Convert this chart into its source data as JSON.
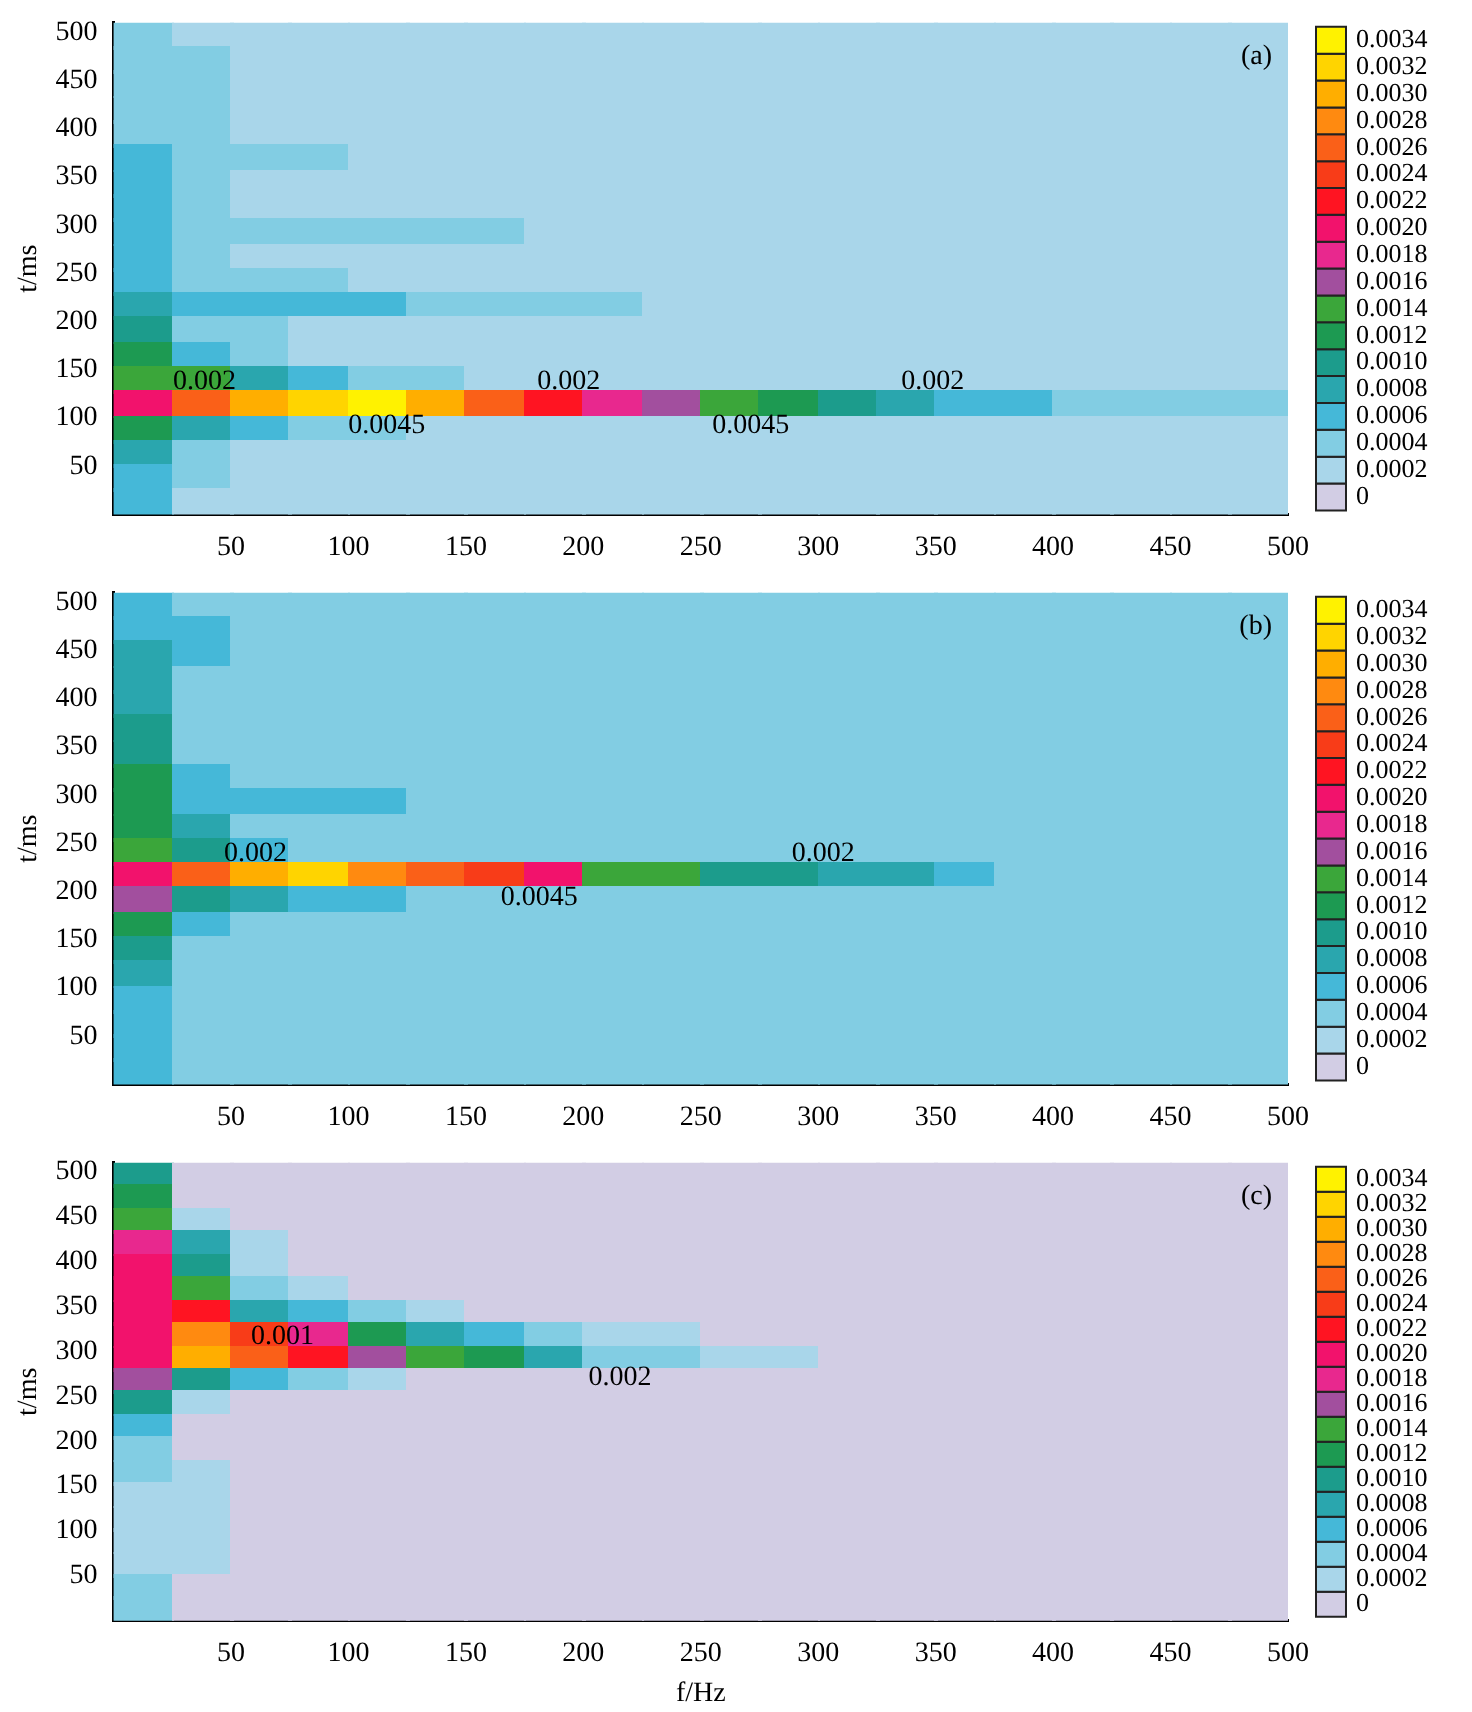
{
  "chart_data": [
    {
      "type": "heatmap",
      "ylabel": "t/ms",
      "annotations": [
        "(a)",
        "0.002",
        "0.0045",
        "0.002",
        "0.0045",
        "0.002"
      ],
      "x": [
        12.5,
        37.5,
        62.5,
        87.5,
        112.5,
        137.5,
        162.5,
        187.5,
        212.5,
        237.5,
        262.5,
        287.5,
        312.5,
        337.5,
        362.5,
        387.5,
        412.5,
        437.5,
        462.5,
        487.5
      ],
      "y": [
        497.25,
        471.75,
        446.25,
        420.75,
        395.25,
        369.75,
        344.25,
        318.75,
        293.25,
        267.75,
        242.25,
        216.75,
        191.25,
        165.75,
        140.25,
        114.75,
        89.25,
        63.75,
        38.25,
        12.75
      ],
      "xlim": [
        0,
        500
      ],
      "ylim": [
        0,
        510
      ],
      "xticks": [
        50,
        100,
        150,
        200,
        250,
        300,
        350,
        400,
        450,
        500
      ],
      "yticks": [
        50,
        100,
        150,
        200,
        250,
        300,
        350,
        400,
        450,
        500
      ],
      "clim": [
        -0.0001,
        0.0035
      ],
      "cticks": [
        0,
        0.0002,
        0.0004,
        0.0006,
        0.0008,
        {
          "value": 0.001,
          "label": "0.0010"
        },
        0.0012,
        0.0014,
        0.0016,
        0.0018,
        {
          "value": 0.002,
          "label": "0.0020"
        },
        0.0022,
        0.0024,
        0.0026,
        0.0028,
        {
          "value": 0.003,
          "label": "0.0030"
        },
        0.0032,
        0.0034
      ],
      "cells": [
        [
          0.0004,
          0.0002,
          0.0002,
          0.0002,
          0.0002,
          0.0002,
          0.0002,
          0.0002,
          0.0002,
          0.0002,
          0.0002,
          0.0002,
          0.0002,
          0.0002,
          0.0002,
          0.0002,
          0.0002,
          0.0002,
          0.0002,
          0.0002
        ],
        [
          0.0004,
          0.0004,
          0.0002,
          0.0002,
          0.0002,
          0.0002,
          0.0002,
          0.0002,
          0.0002,
          0.0002,
          0.0002,
          0.0002,
          0.0002,
          0.0002,
          0.0002,
          0.0002,
          0.0002,
          0.0002,
          0.0002,
          0.0002
        ],
        [
          0.0004,
          0.0004,
          0.0002,
          0.0002,
          0.0002,
          0.0002,
          0.0002,
          0.0002,
          0.0002,
          0.0002,
          0.0002,
          0.0002,
          0.0002,
          0.0002,
          0.0002,
          0.0002,
          0.0002,
          0.0002,
          0.0002,
          0.0002
        ],
        [
          0.0004,
          0.0004,
          0.0002,
          0.0002,
          0.0002,
          0.0002,
          0.0002,
          0.0002,
          0.0002,
          0.0002,
          0.0002,
          0.0002,
          0.0002,
          0.0002,
          0.0002,
          0.0002,
          0.0002,
          0.0002,
          0.0002,
          0.0002
        ],
        [
          0.0004,
          0.0004,
          0.0002,
          0.0002,
          0.0002,
          0.0002,
          0.0002,
          0.0002,
          0.0002,
          0.0002,
          0.0002,
          0.0002,
          0.0002,
          0.0002,
          0.0002,
          0.0002,
          0.0002,
          0.0002,
          0.0002,
          0.0002
        ],
        [
          0.0006,
          0.0004,
          0.0004,
          0.0004,
          0.0002,
          0.0002,
          0.0002,
          0.0002,
          0.0002,
          0.0002,
          0.0002,
          0.0002,
          0.0002,
          0.0002,
          0.0002,
          0.0002,
          0.0002,
          0.0002,
          0.0002,
          0.0002
        ],
        [
          0.0006,
          0.0004,
          0.0002,
          0.0002,
          0.0002,
          0.0002,
          0.0002,
          0.0002,
          0.0002,
          0.0002,
          0.0002,
          0.0002,
          0.0002,
          0.0002,
          0.0002,
          0.0002,
          0.0002,
          0.0002,
          0.0002,
          0.0002
        ],
        [
          0.0006,
          0.0004,
          0.0002,
          0.0002,
          0.0002,
          0.0002,
          0.0002,
          0.0002,
          0.0002,
          0.0002,
          0.0002,
          0.0002,
          0.0002,
          0.0002,
          0.0002,
          0.0002,
          0.0002,
          0.0002,
          0.0002,
          0.0002
        ],
        [
          0.0006,
          0.0004,
          0.0004,
          0.0004,
          0.0004,
          0.0004,
          0.0004,
          0.0002,
          0.0002,
          0.0002,
          0.0002,
          0.0002,
          0.0002,
          0.0002,
          0.0002,
          0.0002,
          0.0002,
          0.0002,
          0.0002,
          0.0002
        ],
        [
          0.0006,
          0.0004,
          0.0002,
          0.0002,
          0.0002,
          0.0002,
          0.0002,
          0.0002,
          0.0002,
          0.0002,
          0.0002,
          0.0002,
          0.0002,
          0.0002,
          0.0002,
          0.0002,
          0.0002,
          0.0002,
          0.0002,
          0.0002
        ],
        [
          0.0006,
          0.0004,
          0.0004,
          0.0004,
          0.0002,
          0.0002,
          0.0002,
          0.0002,
          0.0002,
          0.0002,
          0.0002,
          0.0002,
          0.0002,
          0.0002,
          0.0002,
          0.0002,
          0.0002,
          0.0002,
          0.0002,
          0.0002
        ],
        [
          0.0008,
          0.0006,
          0.0006,
          0.0006,
          0.0006,
          0.0004,
          0.0004,
          0.0004,
          0.0004,
          0.0002,
          0.0002,
          0.0002,
          0.0002,
          0.0002,
          0.0002,
          0.0002,
          0.0002,
          0.0002,
          0.0002,
          0.0002
        ],
        [
          0.001,
          0.0004,
          0.0004,
          0.0002,
          0.0002,
          0.0002,
          0.0002,
          0.0002,
          0.0002,
          0.0002,
          0.0002,
          0.0002,
          0.0002,
          0.0002,
          0.0002,
          0.0002,
          0.0002,
          0.0002,
          0.0002,
          0.0002
        ],
        [
          0.0012,
          0.0006,
          0.0004,
          0.0002,
          0.0002,
          0.0002,
          0.0002,
          0.0002,
          0.0002,
          0.0002,
          0.0002,
          0.0002,
          0.0002,
          0.0002,
          0.0002,
          0.0002,
          0.0002,
          0.0002,
          0.0002,
          0.0002
        ],
        [
          0.0014,
          0.0014,
          0.0008,
          0.0006,
          0.0004,
          0.0004,
          0.0002,
          0.0002,
          0.0002,
          0.0002,
          0.0002,
          0.0002,
          0.0002,
          0.0002,
          0.0002,
          0.0002,
          0.0002,
          0.0002,
          0.0002,
          0.0002
        ],
        [
          0.002,
          0.0026,
          0.003,
          0.0032,
          0.0034,
          0.003,
          0.0026,
          0.0022,
          0.0018,
          0.0016,
          0.0014,
          0.0012,
          0.001,
          0.0008,
          0.0006,
          0.0006,
          0.0004,
          0.0004,
          0.0004,
          0.0004
        ],
        [
          0.0012,
          0.0008,
          0.0006,
          0.0004,
          0.0004,
          0.0002,
          0.0002,
          0.0002,
          0.0002,
          0.0002,
          0.0002,
          0.0002,
          0.0002,
          0.0002,
          0.0002,
          0.0002,
          0.0002,
          0.0002,
          0.0002,
          0.0002
        ],
        [
          0.0008,
          0.0004,
          0.0002,
          0.0002,
          0.0002,
          0.0002,
          0.0002,
          0.0002,
          0.0002,
          0.0002,
          0.0002,
          0.0002,
          0.0002,
          0.0002,
          0.0002,
          0.0002,
          0.0002,
          0.0002,
          0.0002,
          0.0002
        ],
        [
          0.0006,
          0.0004,
          0.0002,
          0.0002,
          0.0002,
          0.0002,
          0.0002,
          0.0002,
          0.0002,
          0.0002,
          0.0002,
          0.0002,
          0.0002,
          0.0002,
          0.0002,
          0.0002,
          0.0002,
          0.0002,
          0.0002,
          0.0002
        ],
        [
          0.0006,
          0.0002,
          0.0002,
          0.0002,
          0.0002,
          0.0002,
          0.0002,
          0.0002,
          0.0002,
          0.0002,
          0.0002,
          0.0002,
          0.0002,
          0.0002,
          0.0002,
          0.0002,
          0.0002,
          0.0002,
          0.0002,
          0.0002
        ]
      ]
    },
    {
      "type": "heatmap",
      "ylabel": "t/ms",
      "annotations": [
        "(b)",
        "0.002",
        "0.0045",
        "0.002"
      ],
      "x": [
        12.5,
        37.5,
        62.5,
        87.5,
        112.5,
        137.5,
        162.5,
        187.5,
        212.5,
        237.5,
        262.5,
        287.5,
        312.5,
        337.5,
        362.5,
        387.5,
        412.5,
        437.5,
        462.5,
        487.5
      ],
      "y": [
        497.25,
        471.75,
        446.25,
        420.75,
        395.25,
        369.75,
        344.25,
        318.75,
        293.25,
        267.75,
        242.25,
        216.75,
        191.25,
        165.75,
        140.25,
        114.75,
        89.25,
        63.75,
        38.25,
        12.75
      ],
      "xlim": [
        0,
        500
      ],
      "ylim": [
        0,
        510
      ],
      "xticks": [
        50,
        100,
        150,
        200,
        250,
        300,
        350,
        400,
        450,
        500
      ],
      "yticks": [
        50,
        100,
        150,
        200,
        250,
        300,
        350,
        400,
        450,
        500
      ],
      "clim": [
        -0.0001,
        0.0035
      ],
      "cticks": [
        0,
        0.0002,
        0.0004,
        0.0006,
        0.0008,
        {
          "value": 0.001,
          "label": "0.0010"
        },
        0.0012,
        0.0014,
        0.0016,
        0.0018,
        {
          "value": 0.002,
          "label": "0.0020"
        },
        0.0022,
        0.0024,
        0.0026,
        0.0028,
        {
          "value": 0.003,
          "label": "0.0030"
        },
        0.0032,
        0.0034
      ],
      "cells": [
        [
          0.0006,
          0.0004,
          0.0004,
          0.0004,
          0.0004,
          0.0004,
          0.0004,
          0.0004,
          0.0004,
          0.0004,
          0.0004,
          0.0004,
          0.0004,
          0.0004,
          0.0004,
          0.0004,
          0.0004,
          0.0004,
          0.0004,
          0.0004
        ],
        [
          0.0006,
          0.0006,
          0.0004,
          0.0004,
          0.0004,
          0.0004,
          0.0004,
          0.0004,
          0.0004,
          0.0004,
          0.0004,
          0.0004,
          0.0004,
          0.0004,
          0.0004,
          0.0004,
          0.0004,
          0.0004,
          0.0004,
          0.0004
        ],
        [
          0.0008,
          0.0006,
          0.0004,
          0.0004,
          0.0004,
          0.0004,
          0.0004,
          0.0004,
          0.0004,
          0.0004,
          0.0004,
          0.0004,
          0.0004,
          0.0004,
          0.0004,
          0.0004,
          0.0004,
          0.0004,
          0.0004,
          0.0004
        ],
        [
          0.0008,
          0.0004,
          0.0004,
          0.0004,
          0.0004,
          0.0004,
          0.0004,
          0.0004,
          0.0004,
          0.0004,
          0.0004,
          0.0004,
          0.0004,
          0.0004,
          0.0004,
          0.0004,
          0.0004,
          0.0004,
          0.0004,
          0.0004
        ],
        [
          0.0008,
          0.0004,
          0.0004,
          0.0004,
          0.0004,
          0.0004,
          0.0004,
          0.0004,
          0.0004,
          0.0004,
          0.0004,
          0.0004,
          0.0004,
          0.0004,
          0.0004,
          0.0004,
          0.0004,
          0.0004,
          0.0004,
          0.0004
        ],
        [
          0.001,
          0.0004,
          0.0004,
          0.0004,
          0.0004,
          0.0004,
          0.0004,
          0.0004,
          0.0004,
          0.0004,
          0.0004,
          0.0004,
          0.0004,
          0.0004,
          0.0004,
          0.0004,
          0.0004,
          0.0004,
          0.0004,
          0.0004
        ],
        [
          0.001,
          0.0004,
          0.0004,
          0.0004,
          0.0004,
          0.0004,
          0.0004,
          0.0004,
          0.0004,
          0.0004,
          0.0004,
          0.0004,
          0.0004,
          0.0004,
          0.0004,
          0.0004,
          0.0004,
          0.0004,
          0.0004,
          0.0004
        ],
        [
          0.0012,
          0.0006,
          0.0004,
          0.0004,
          0.0004,
          0.0004,
          0.0004,
          0.0004,
          0.0004,
          0.0004,
          0.0004,
          0.0004,
          0.0004,
          0.0004,
          0.0004,
          0.0004,
          0.0004,
          0.0004,
          0.0004,
          0.0004
        ],
        [
          0.0012,
          0.0006,
          0.0006,
          0.0006,
          0.0006,
          0.0004,
          0.0004,
          0.0004,
          0.0004,
          0.0004,
          0.0004,
          0.0004,
          0.0004,
          0.0004,
          0.0004,
          0.0004,
          0.0004,
          0.0004,
          0.0004,
          0.0004
        ],
        [
          0.0012,
          0.0008,
          0.0004,
          0.0004,
          0.0004,
          0.0004,
          0.0004,
          0.0004,
          0.0004,
          0.0004,
          0.0004,
          0.0004,
          0.0004,
          0.0004,
          0.0004,
          0.0004,
          0.0004,
          0.0004,
          0.0004,
          0.0004
        ],
        [
          0.0014,
          0.001,
          0.0006,
          0.0004,
          0.0004,
          0.0004,
          0.0004,
          0.0004,
          0.0004,
          0.0004,
          0.0004,
          0.0004,
          0.0004,
          0.0004,
          0.0004,
          0.0004,
          0.0004,
          0.0004,
          0.0004,
          0.0004
        ],
        [
          0.002,
          0.0026,
          0.003,
          0.0032,
          0.0028,
          0.0026,
          0.0024,
          0.002,
          0.0014,
          0.0014,
          0.001,
          0.001,
          0.0008,
          0.0008,
          0.0006,
          0.0004,
          0.0004,
          0.0004,
          0.0004,
          0.0004
        ],
        [
          0.0016,
          0.001,
          0.0008,
          0.0006,
          0.0006,
          0.0004,
          0.0004,
          0.0004,
          0.0004,
          0.0004,
          0.0004,
          0.0004,
          0.0004,
          0.0004,
          0.0004,
          0.0004,
          0.0004,
          0.0004,
          0.0004,
          0.0004
        ],
        [
          0.0012,
          0.0006,
          0.0004,
          0.0004,
          0.0004,
          0.0004,
          0.0004,
          0.0004,
          0.0004,
          0.0004,
          0.0004,
          0.0004,
          0.0004,
          0.0004,
          0.0004,
          0.0004,
          0.0004,
          0.0004,
          0.0004,
          0.0004
        ],
        [
          0.001,
          0.0004,
          0.0004,
          0.0004,
          0.0004,
          0.0004,
          0.0004,
          0.0004,
          0.0004,
          0.0004,
          0.0004,
          0.0004,
          0.0004,
          0.0004,
          0.0004,
          0.0004,
          0.0004,
          0.0004,
          0.0004,
          0.0004
        ],
        [
          0.0008,
          0.0004,
          0.0004,
          0.0004,
          0.0004,
          0.0004,
          0.0004,
          0.0004,
          0.0004,
          0.0004,
          0.0004,
          0.0004,
          0.0004,
          0.0004,
          0.0004,
          0.0004,
          0.0004,
          0.0004,
          0.0004,
          0.0004
        ],
        [
          0.0006,
          0.0004,
          0.0004,
          0.0004,
          0.0004,
          0.0004,
          0.0004,
          0.0004,
          0.0004,
          0.0004,
          0.0004,
          0.0004,
          0.0004,
          0.0004,
          0.0004,
          0.0004,
          0.0004,
          0.0004,
          0.0004,
          0.0004
        ],
        [
          0.0006,
          0.0004,
          0.0004,
          0.0004,
          0.0004,
          0.0004,
          0.0004,
          0.0004,
          0.0004,
          0.0004,
          0.0004,
          0.0004,
          0.0004,
          0.0004,
          0.0004,
          0.0004,
          0.0004,
          0.0004,
          0.0004,
          0.0004
        ],
        [
          0.0006,
          0.0004,
          0.0004,
          0.0004,
          0.0004,
          0.0004,
          0.0004,
          0.0004,
          0.0004,
          0.0004,
          0.0004,
          0.0004,
          0.0004,
          0.0004,
          0.0004,
          0.0004,
          0.0004,
          0.0004,
          0.0004,
          0.0004
        ],
        [
          0.0006,
          0.0004,
          0.0004,
          0.0004,
          0.0004,
          0.0004,
          0.0004,
          0.0004,
          0.0004,
          0.0004,
          0.0004,
          0.0004,
          0.0004,
          0.0004,
          0.0004,
          0.0004,
          0.0004,
          0.0004,
          0.0004,
          0.0004
        ]
      ]
    },
    {
      "type": "heatmap",
      "xlabel": "f/Hz",
      "ylabel": "t/ms",
      "annotations": [
        "(c)",
        "0.001",
        "0.002"
      ],
      "x": [
        12.5,
        37.5,
        62.5,
        87.5,
        112.5,
        137.5,
        162.5,
        187.5,
        212.5,
        237.5,
        262.5,
        287.5,
        312.5,
        337.5,
        362.5,
        387.5,
        412.5,
        437.5,
        462.5,
        487.5
      ],
      "y": [
        497.25,
        471.75,
        446.25,
        420.75,
        395.25,
        369.75,
        344.25,
        318.75,
        293.25,
        267.75,
        242.25,
        216.75,
        191.25,
        165.75,
        140.25,
        114.75,
        89.25,
        63.75,
        38.25,
        12.75
      ],
      "xlim": [
        0,
        500
      ],
      "ylim": [
        0,
        510
      ],
      "xticks": [
        50,
        100,
        150,
        200,
        250,
        300,
        350,
        400,
        450,
        500
      ],
      "yticks": [
        50,
        100,
        150,
        200,
        250,
        300,
        350,
        400,
        450,
        500
      ],
      "clim": [
        -0.0001,
        0.0035
      ],
      "cticks": [
        0,
        0.0002,
        0.0004,
        0.0006,
        0.0008,
        {
          "value": 0.001,
          "label": "0.0010"
        },
        0.0012,
        0.0014,
        0.0016,
        0.0018,
        {
          "value": 0.002,
          "label": "0.0020"
        },
        0.0022,
        0.0024,
        0.0026,
        0.0028,
        {
          "value": 0.003,
          "label": "0.0030"
        },
        0.0032,
        0.0034
      ],
      "cells": [
        [
          0.001,
          0,
          0,
          0,
          0,
          0,
          0,
          0,
          0,
          0,
          0,
          0,
          0,
          0,
          0,
          0,
          0,
          0,
          0,
          0
        ],
        [
          0.0012,
          0,
          0,
          0,
          0,
          0,
          0,
          0,
          0,
          0,
          0,
          0,
          0,
          0,
          0,
          0,
          0,
          0,
          0,
          0
        ],
        [
          0.0014,
          0.0002,
          0,
          0,
          0,
          0,
          0,
          0,
          0,
          0,
          0,
          0,
          0,
          0,
          0,
          0,
          0,
          0,
          0,
          0
        ],
        [
          0.0018,
          0.0008,
          0.0002,
          0,
          0,
          0,
          0,
          0,
          0,
          0,
          0,
          0,
          0,
          0,
          0,
          0,
          0,
          0,
          0,
          0
        ],
        [
          0.002,
          0.001,
          0.0002,
          0,
          0,
          0,
          0,
          0,
          0,
          0,
          0,
          0,
          0,
          0,
          0,
          0,
          0,
          0,
          0,
          0
        ],
        [
          0.002,
          0.0014,
          0.0004,
          0.0002,
          0,
          0,
          0,
          0,
          0,
          0,
          0,
          0,
          0,
          0,
          0,
          0,
          0,
          0,
          0,
          0
        ],
        [
          0.002,
          0.0022,
          0.0008,
          0.0006,
          0.0004,
          0.0002,
          0,
          0,
          0,
          0,
          0,
          0,
          0,
          0,
          0,
          0,
          0,
          0,
          0,
          0
        ],
        [
          0.002,
          0.0028,
          0.0024,
          0.0018,
          0.0012,
          0.0008,
          0.0006,
          0.0004,
          0.0002,
          0.0002,
          0,
          0,
          0,
          0,
          0,
          0,
          0,
          0,
          0,
          0
        ],
        [
          0.002,
          0.003,
          0.0026,
          0.0022,
          0.0016,
          0.0014,
          0.0012,
          0.0008,
          0.0004,
          0.0004,
          0.0002,
          0.0002,
          0,
          0,
          0,
          0,
          0,
          0,
          0,
          0
        ],
        [
          0.0016,
          0.001,
          0.0006,
          0.0004,
          0.0002,
          0,
          0,
          0,
          0,
          0,
          0,
          0,
          0,
          0,
          0,
          0,
          0,
          0,
          0,
          0
        ],
        [
          0.001,
          0.0002,
          0,
          0,
          0,
          0,
          0,
          0,
          0,
          0,
          0,
          0,
          0,
          0,
          0,
          0,
          0,
          0,
          0,
          0
        ],
        [
          0.0006,
          0,
          0,
          0,
          0,
          0,
          0,
          0,
          0,
          0,
          0,
          0,
          0,
          0,
          0,
          0,
          0,
          0,
          0,
          0
        ],
        [
          0.0004,
          0,
          0,
          0,
          0,
          0,
          0,
          0,
          0,
          0,
          0,
          0,
          0,
          0,
          0,
          0,
          0,
          0,
          0,
          0
        ],
        [
          0.0004,
          0.0002,
          0,
          0,
          0,
          0,
          0,
          0,
          0,
          0,
          0,
          0,
          0,
          0,
          0,
          0,
          0,
          0,
          0,
          0
        ],
        [
          0.0002,
          0.0002,
          0,
          0,
          0,
          0,
          0,
          0,
          0,
          0,
          0,
          0,
          0,
          0,
          0,
          0,
          0,
          0,
          0,
          0
        ],
        [
          0.0002,
          0.0002,
          0,
          0,
          0,
          0,
          0,
          0,
          0,
          0,
          0,
          0,
          0,
          0,
          0,
          0,
          0,
          0,
          0,
          0
        ],
        [
          0.0002,
          0.0002,
          0,
          0,
          0,
          0,
          0,
          0,
          0,
          0,
          0,
          0,
          0,
          0,
          0,
          0,
          0,
          0,
          0,
          0
        ],
        [
          0.0002,
          0.0002,
          0,
          0,
          0,
          0,
          0,
          0,
          0,
          0,
          0,
          0,
          0,
          0,
          0,
          0,
          0,
          0,
          0,
          0
        ],
        [
          0.0004,
          0,
          0,
          0,
          0,
          0,
          0,
          0,
          0,
          0,
          0,
          0,
          0,
          0,
          0,
          0,
          0,
          0,
          0,
          0
        ],
        [
          0.0004,
          0,
          0,
          0,
          0,
          0,
          0,
          0,
          0,
          0,
          0,
          0,
          0,
          0,
          0,
          0,
          0,
          0,
          0,
          0
        ]
      ]
    }
  ]
}
